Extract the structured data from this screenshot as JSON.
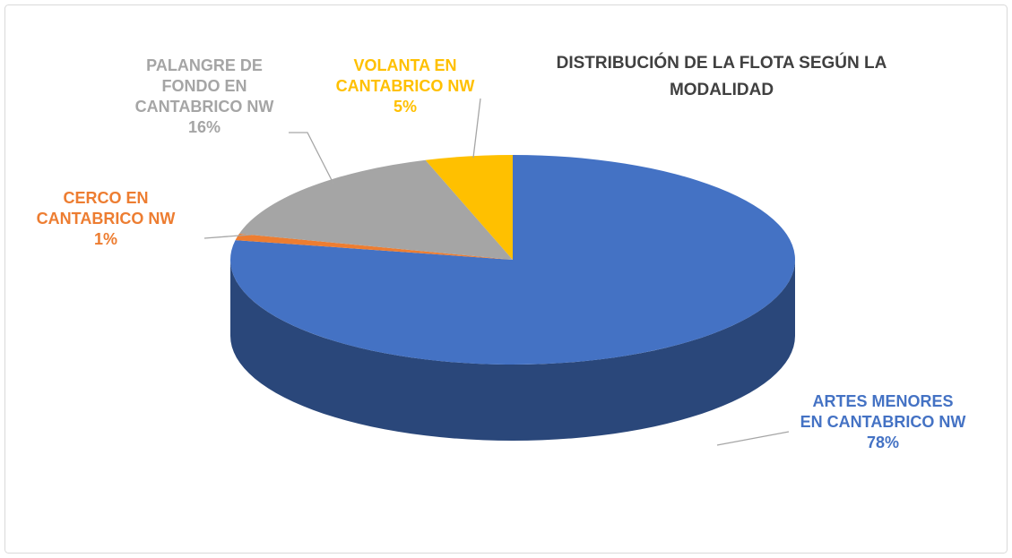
{
  "chart_data": {
    "type": "pie",
    "title": "DISTRIBUCIÓN DE LA FLOTA SEGÚN LA MODALIDAD",
    "categories": [
      "ARTES MENORES EN CANTABRICO NW",
      "CERCO EN CANTABRICO NW",
      "PALANGRE DE FONDO EN CANTABRICO NW",
      "VOLANTA EN CANTABRICO NW"
    ],
    "values": [
      78,
      1,
      16,
      5
    ],
    "value_labels": [
      "78%",
      "1%",
      "16%",
      "5%"
    ],
    "colors": [
      "#4472c4",
      "#ed7d31",
      "#a5a5a5",
      "#ffc000"
    ]
  }
}
